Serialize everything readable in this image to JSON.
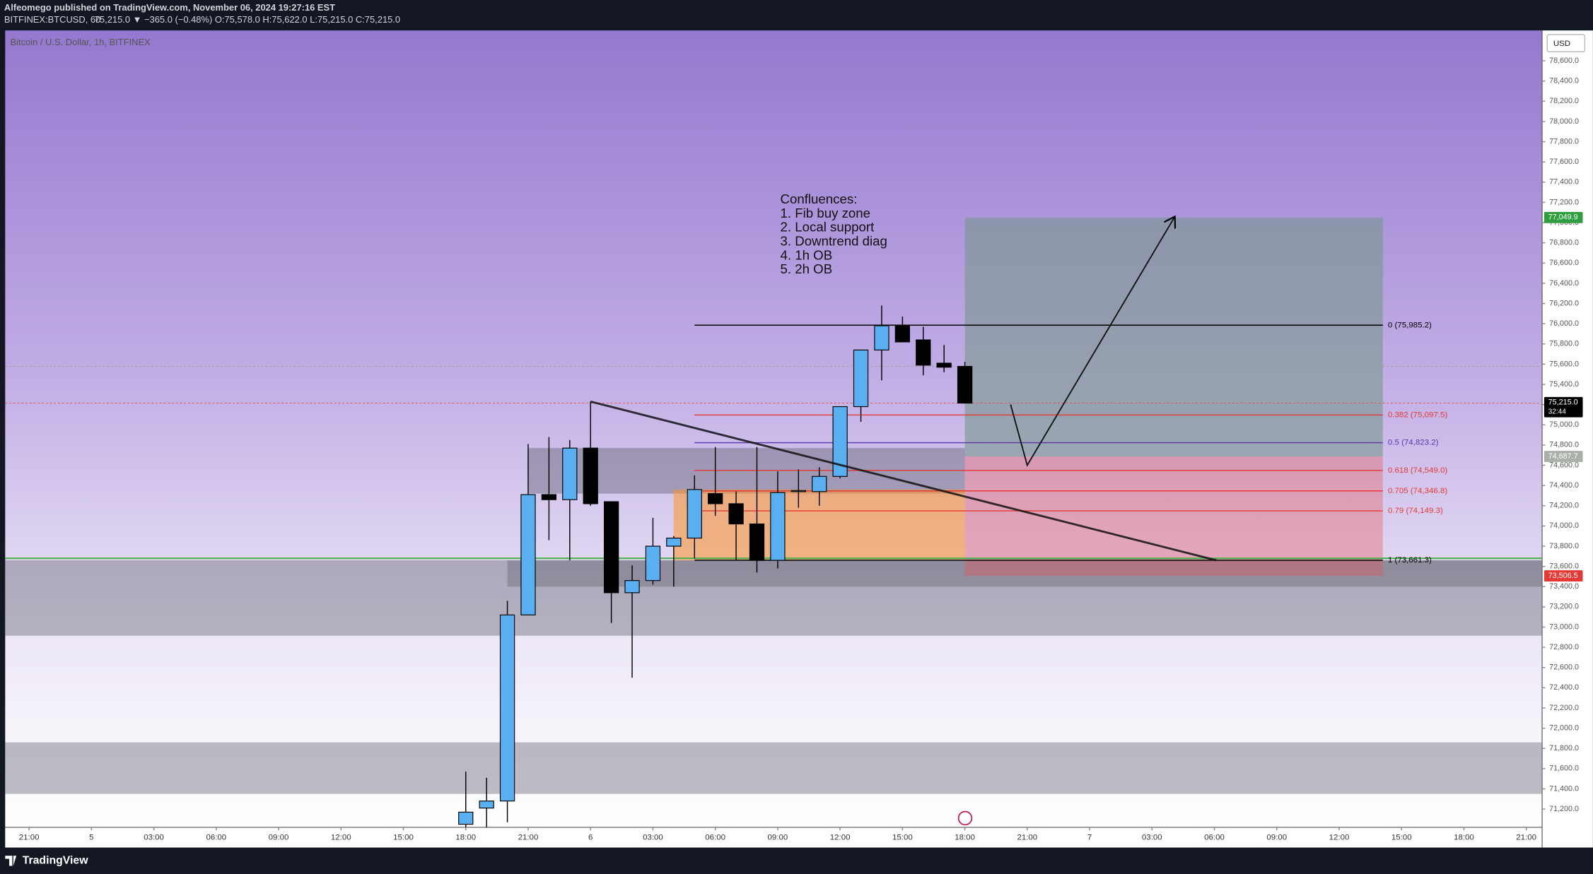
{
  "header": {
    "author_line": "Alfeomego published on TradingView.com, November 06, 2024 19:27:16 EST",
    "symbol": "BITFINEX:BTCUSD, 60",
    "quote": "75,215.0 ▼ −365.0 (−0.48%) O:75,578.0 H:75,622.0 L:75,215.0 C:75,215.0",
    "currency": "USD",
    "brand": "TradingView"
  },
  "chart_data": {
    "type": "candlestick",
    "title": "Bitcoin / U.S. Dollar, 1h, BITFINEX",
    "x": [
      18,
      19,
      20,
      21,
      22,
      23,
      24,
      25,
      26,
      27,
      28,
      29,
      30,
      31,
      32,
      33,
      34,
      35,
      36,
      37,
      38,
      39,
      40,
      41,
      42
    ],
    "open": [
      71050,
      71210,
      71280,
      73120,
      74310,
      74260,
      74770,
      74240,
      73340,
      73460,
      73800,
      73880,
      74320,
      74220,
      74020,
      73660,
      74340,
      74340,
      74490,
      75180,
      75740,
      75980,
      75840,
      75610,
      75578
    ],
    "high": [
      71570,
      71510,
      73260,
      74810,
      74880,
      74850,
      75230,
      74240,
      73610,
      74080,
      73900,
      74500,
      74780,
      74340,
      74780,
      74540,
      74560,
      74580,
      75180,
      75740,
      76180,
      76070,
      75970,
      75790,
      75622
    ],
    "low": [
      71000,
      71020,
      71070,
      73120,
      73860,
      73660,
      74200,
      73040,
      72500,
      73420,
      73400,
      73680,
      74100,
      73660,
      73540,
      73580,
      74180,
      74200,
      74470,
      75030,
      75440,
      75820,
      75490,
      75520,
      75215
    ],
    "close": [
      71170,
      71280,
      73120,
      74310,
      74260,
      74770,
      74220,
      73340,
      73460,
      73800,
      73880,
      74360,
      74220,
      74020,
      73660,
      74330,
      74350,
      74490,
      75180,
      75740,
      75980,
      75820,
      75590,
      75570,
      75215
    ],
    "up_color": "#5aaff0",
    "down_color": "#000000",
    "xlim": [
      -4.15,
      69.76
    ],
    "xticks": [
      {
        "value": -3,
        "label": "21:00"
      },
      {
        "value": 0,
        "label": "5"
      },
      {
        "value": 3,
        "label": "03:00"
      },
      {
        "value": 6,
        "label": "06:00"
      },
      {
        "value": 9,
        "label": "09:00"
      },
      {
        "value": 12,
        "label": "12:00"
      },
      {
        "value": 15,
        "label": "15:00"
      },
      {
        "value": 18,
        "label": "18:00"
      },
      {
        "value": 21,
        "label": "21:00"
      },
      {
        "value": 24,
        "label": "6"
      },
      {
        "value": 27,
        "label": "03:00"
      },
      {
        "value": 30,
        "label": "06:00"
      },
      {
        "value": 33,
        "label": "09:00"
      },
      {
        "value": 36,
        "label": "12:00"
      },
      {
        "value": 39,
        "label": "15:00"
      },
      {
        "value": 42,
        "label": "18:00"
      },
      {
        "value": 45,
        "label": "21:00"
      },
      {
        "value": 48,
        "label": "7"
      },
      {
        "value": 51,
        "label": "03:00"
      },
      {
        "value": 54,
        "label": "06:00"
      },
      {
        "value": 57,
        "label": "09:00"
      },
      {
        "value": 60,
        "label": "12:00"
      },
      {
        "value": 63,
        "label": "15:00"
      },
      {
        "value": 66,
        "label": "18:00"
      },
      {
        "value": 69,
        "label": "21:00"
      }
    ],
    "ylim": [
      71020,
      78900
    ],
    "yticks": [
      {
        "value": 71200,
        "label": "71,200.0"
      },
      {
        "value": 71400,
        "label": "71,400.0"
      },
      {
        "value": 71600,
        "label": "71,600.0"
      },
      {
        "value": 71800,
        "label": "71,800.0"
      },
      {
        "value": 72000,
        "label": "72,000.0"
      },
      {
        "value": 72200,
        "label": "72,200.0"
      },
      {
        "value": 72400,
        "label": "72,400.0"
      },
      {
        "value": 72600,
        "label": "72,600.0"
      },
      {
        "value": 72800,
        "label": "72,800.0"
      },
      {
        "value": 73000,
        "label": "73,000.0"
      },
      {
        "value": 73200,
        "label": "73,200.0"
      },
      {
        "value": 73400,
        "label": "73,400.0"
      },
      {
        "value": 73600,
        "label": "73,600.0"
      },
      {
        "value": 73800,
        "label": "73,800.0"
      },
      {
        "value": 74000,
        "label": "74,000.0"
      },
      {
        "value": 74200,
        "label": "74,200.0"
      },
      {
        "value": 74400,
        "label": "74,400.0"
      },
      {
        "value": 74600,
        "label": "74,600.0"
      },
      {
        "value": 74800,
        "label": "74,800.0"
      },
      {
        "value": 75000,
        "label": "75,000.0"
      },
      {
        "value": 75200,
        "label": "75,200.0"
      },
      {
        "value": 75400,
        "label": "75,400.0"
      },
      {
        "value": 75600,
        "label": "75,600.0"
      },
      {
        "value": 75800,
        "label": "75,800.0"
      },
      {
        "value": 76000,
        "label": "76,000.0"
      },
      {
        "value": 76200,
        "label": "76,200.0"
      },
      {
        "value": 76400,
        "label": "76,400.0"
      },
      {
        "value": 76600,
        "label": "76,600.0"
      },
      {
        "value": 76800,
        "label": "76,800.0"
      },
      {
        "value": 77000,
        "label": "77,000.0"
      },
      {
        "value": 77200,
        "label": "77,200.0"
      },
      {
        "value": 77400,
        "label": "77,400.0"
      },
      {
        "value": 77600,
        "label": "77,600.0"
      },
      {
        "value": 77800,
        "label": "77,800.0"
      },
      {
        "value": 78000,
        "label": "78,000.0"
      },
      {
        "value": 78200,
        "label": "78,200.0"
      },
      {
        "value": 78400,
        "label": "78,400.0"
      },
      {
        "value": 78600,
        "label": "78,600.0"
      }
    ],
    "zones": [
      {
        "low": 72915,
        "high": 73660,
        "color": "rgba(110,110,125,0.45)"
      },
      {
        "low": 73400,
        "high": 73660,
        "x_from": 20,
        "color": "rgba(90,90,100,0.35)"
      },
      {
        "low": 71350,
        "high": 71860,
        "color": "rgba(110,110,125,0.45)"
      },
      {
        "low": 74320,
        "high": 74770,
        "x_from": 21,
        "x_to": 42,
        "color": "rgba(100,100,115,0.45)"
      },
      {
        "low": 73660,
        "high": 74360,
        "x_from": 28,
        "x_to": 42,
        "color": "rgba(255,150,40,0.55)"
      },
      {
        "low": 74687.7,
        "high": 77049.9,
        "x_from": 42,
        "x_to": 62.1,
        "color": "rgba(120,150,140,0.6)"
      },
      {
        "low": 73506.5,
        "high": 74687.7,
        "x_from": 42,
        "x_to": 62.1,
        "color": "rgba(235,80,80,0.35)"
      }
    ],
    "hlines": [
      {
        "value": 75578,
        "color": "#9e9e9e",
        "dash": "2 2"
      },
      {
        "value": 75215,
        "color": "#e05050",
        "dash": "2 2"
      },
      {
        "value": 73680,
        "color": "#4caf50"
      }
    ],
    "fib_x": [
      29,
      62.1
    ],
    "fib_levels": [
      {
        "value": 75985.2,
        "label": "0 (75,985.2)",
        "color": "#000000"
      },
      {
        "value": 75097.5,
        "label": "0.382 (75,097.5)",
        "color": "#e53935"
      },
      {
        "value": 74823.2,
        "label": "0.5 (74,823.2)",
        "color": "#5e35b1"
      },
      {
        "value": 74549.0,
        "label": "0.618 (74,549.0)",
        "color": "#e53935"
      },
      {
        "value": 74346.8,
        "label": "0.705 (74,346.8)",
        "color": "#e53935"
      },
      {
        "value": 74149.3,
        "label": "0.79 (74,149.3)",
        "color": "#e53935"
      },
      {
        "value": 73661.3,
        "label": "1 (73,661.3)",
        "color": "#000000"
      }
    ],
    "trend_line": {
      "x": [
        24,
        54.1
      ],
      "y": [
        75230,
        73660
      ]
    },
    "arrow": {
      "x": [
        44.2,
        45,
        52.1
      ],
      "y": [
        75200,
        74600,
        77060
      ]
    },
    "price_tags": [
      {
        "value": 77049.9,
        "label": "77,049.9",
        "color": "#2e9e3e"
      },
      {
        "value": 75215,
        "label": "75,215.0",
        "sublabel": "32:44",
        "color": "#000000"
      },
      {
        "value": 74687.7,
        "label": "74,687.7",
        "color": "#a8b0a8"
      },
      {
        "value": 73506.5,
        "label": "73,506.5",
        "color": "#e53935"
      }
    ],
    "annotation": [
      "Confluences:",
      "1. Fib buy zone",
      "2. Local support",
      "3. Downtrend diag",
      "4. 1h OB",
      "5. 2h OB"
    ]
  }
}
